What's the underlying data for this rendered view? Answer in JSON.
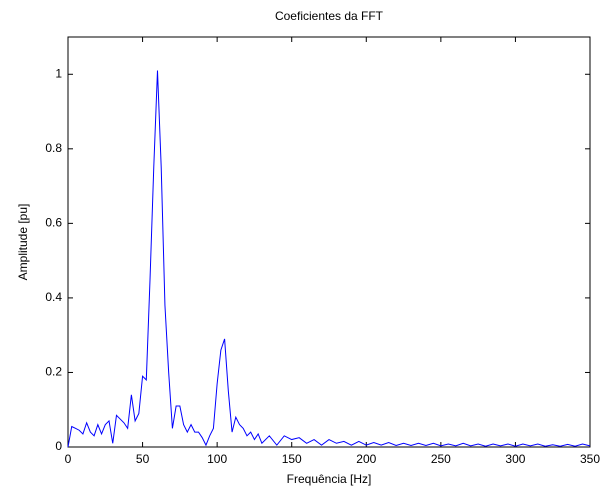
{
  "chart_data": {
    "type": "line",
    "title": "Coeficientes da FFT",
    "x_label": "Frequência [Hz]",
    "y_label": "Amplitude [pu]",
    "x": [
      0,
      2.5,
      5,
      7.5,
      10,
      12.5,
      15,
      17.5,
      20,
      22.5,
      25,
      27.5,
      30,
      32.5,
      35,
      37.5,
      40,
      42.5,
      45,
      47.5,
      50,
      52.5,
      55,
      57.5,
      60,
      62.5,
      65,
      67.5,
      70,
      72.5,
      75,
      77.5,
      80,
      82.5,
      85,
      87.5,
      90,
      92.5,
      95,
      97.5,
      100,
      102.5,
      105,
      107.5,
      110,
      112.5,
      115,
      117.5,
      120,
      122.5,
      125,
      127.5,
      130,
      135,
      140,
      145,
      150,
      155,
      160,
      165,
      170,
      175,
      180,
      185,
      190,
      195,
      200,
      205,
      210,
      215,
      220,
      225,
      230,
      235,
      240,
      245,
      250,
      255,
      260,
      265,
      270,
      275,
      280,
      285,
      290,
      295,
      300,
      305,
      310,
      315,
      320,
      325,
      330,
      335,
      340,
      345,
      350
    ],
    "series": [
      {
        "color": "#0000ff",
        "values": [
          0,
          0.055,
          0.05,
          0.045,
          0.035,
          0.065,
          0.04,
          0.03,
          0.06,
          0.035,
          0.06,
          0.07,
          0.01,
          0.085,
          0.075,
          0.065,
          0.05,
          0.14,
          0.07,
          0.09,
          0.19,
          0.18,
          0.45,
          0.75,
          1.01,
          0.75,
          0.38,
          0.2,
          0.05,
          0.11,
          0.11,
          0.06,
          0.04,
          0.06,
          0.04,
          0.04,
          0.025,
          0.005,
          0.03,
          0.05,
          0.17,
          0.26,
          0.29,
          0.15,
          0.04,
          0.08,
          0.06,
          0.05,
          0.03,
          0.04,
          0.02,
          0.035,
          0.01,
          0.03,
          0.005,
          0.03,
          0.02,
          0.025,
          0.01,
          0.02,
          0.005,
          0.02,
          0.01,
          0.015,
          0.005,
          0.015,
          0.005,
          0.012,
          0.005,
          0.012,
          0.004,
          0.01,
          0.004,
          0.01,
          0.004,
          0.01,
          0.003,
          0.008,
          0.003,
          0.01,
          0.003,
          0.008,
          0.002,
          0.008,
          0.003,
          0.008,
          0.002,
          0.008,
          0.003,
          0.008,
          0.002,
          0.006,
          0.002,
          0.007,
          0.002,
          0.008,
          0.003
        ]
      }
    ],
    "xlim": [
      0,
      350
    ],
    "xticks": [
      0,
      50,
      100,
      150,
      200,
      250,
      300,
      350
    ],
    "ylim": [
      0,
      1.1
    ],
    "yticks": [
      0,
      0.2,
      0.4,
      0.6,
      0.8,
      1
    ],
    "grid": false
  }
}
